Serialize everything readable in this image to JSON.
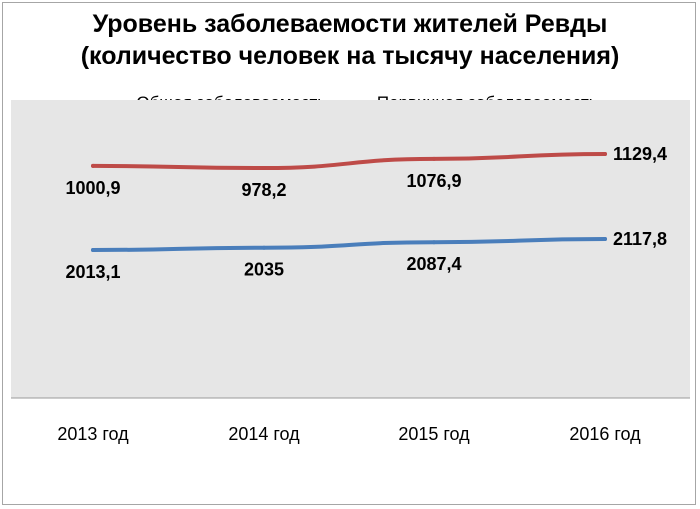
{
  "chart_data": {
    "type": "line",
    "title": "Уровень заболеваемости жителей Ревды",
    "subtitle": "(количество человек на тысячу населения)",
    "categories": [
      "2013 год",
      "2014 год",
      "2015 год",
      "2016 год"
    ],
    "series": [
      {
        "name": "Общая заболеваемость",
        "color": "#4a7ebb",
        "values": [
          2013.1,
          2035,
          2087.4,
          2117.8
        ],
        "labels": [
          "2013,1",
          "2035",
          "2087,4",
          "2117,8"
        ]
      },
      {
        "name": "Первичная заболеваемость",
        "color": "#be4b48",
        "values": [
          1000.9,
          978.2,
          1076.9,
          1129.4
        ],
        "labels": [
          "1000,9",
          "978,2",
          "1076,9",
          "1129,4"
        ]
      }
    ],
    "plot_background": "#e6e6e6",
    "legend_position": "top",
    "grid": false
  }
}
